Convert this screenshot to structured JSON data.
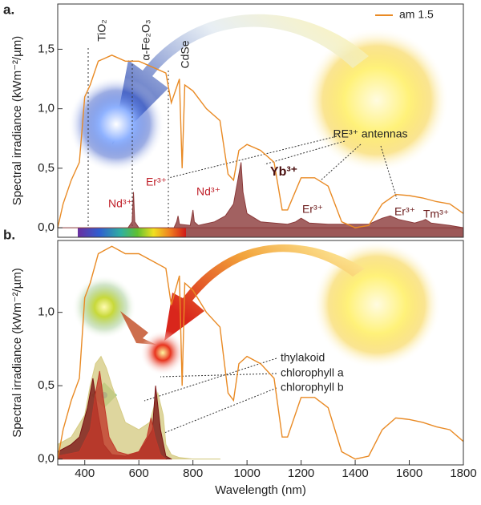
{
  "chart_data": [
    {
      "type": "line",
      "panel_label": "a.",
      "ylabel": "Spectral irradiance (kWm⁻²/µm)",
      "xlim": [
        300,
        1800
      ],
      "ylim": [
        -0.08,
        1.88
      ],
      "yticks": [
        {
          "value": 0,
          "label": "0,0"
        },
        {
          "value": 0.5,
          "label": "0,5"
        },
        {
          "value": 1,
          "label": "1,0"
        },
        {
          "value": 1.5,
          "label": "1,5"
        }
      ],
      "x": [
        300,
        320,
        350,
        380,
        400,
        420,
        450,
        500,
        550,
        600,
        650,
        700,
        720,
        750,
        760,
        770,
        800,
        850,
        900,
        930,
        950,
        970,
        1000,
        1050,
        1100,
        1130,
        1150,
        1200,
        1250,
        1300,
        1350,
        1400,
        1450,
        1500,
        1550,
        1600,
        1650,
        1700,
        1750,
        1800
      ],
      "series": [
        {
          "name": "am 1.5",
          "color": "#e98a24",
          "values": [
            0,
            0.2,
            0.4,
            0.55,
            1.1,
            1.2,
            1.4,
            1.45,
            1.4,
            1.4,
            1.35,
            1.3,
            1.05,
            1.25,
            0.5,
            1.2,
            1.15,
            1.0,
            0.9,
            0.45,
            0.4,
            0.65,
            0.7,
            0.65,
            0.55,
            0.15,
            0.15,
            0.42,
            0.42,
            0.35,
            0.05,
            0,
            0.02,
            0.2,
            0.28,
            0.27,
            0.25,
            0.22,
            0.2,
            0.12
          ]
        },
        {
          "color": "#8b3a3a",
          "x": [
            300,
            560,
            575,
            580,
            585,
            600,
            730,
            740,
            745,
            750,
            790,
            800,
            805,
            820,
            880,
            920,
            950,
            970,
            978,
            985,
            1000,
            1050,
            1150,
            1180,
            1200,
            1230,
            1300,
            1450,
            1500,
            1530,
            1560,
            1620,
            1650,
            1660,
            1680,
            1750,
            1800
          ],
          "values": [
            0,
            0,
            0.05,
            0.3,
            0.05,
            0,
            0,
            0.05,
            0.1,
            0.03,
            0.02,
            0.15,
            0.05,
            0.02,
            0.05,
            0.1,
            0.2,
            0.45,
            0.55,
            0.3,
            0.12,
            0.05,
            0.03,
            0.05,
            0.08,
            0.04,
            0.03,
            0.03,
            0.08,
            0.1,
            0.07,
            0.04,
            0.06,
            0.07,
            0.04,
            0.02,
            0
          ]
        }
      ],
      "legend": "upper right",
      "annotations": [
        "TiO₂",
        "α-Fe₂O₃",
        "CdSe",
        "Nd³⁺",
        "Er³⁺",
        "Nd³⁺",
        "Yb³⁺",
        "Er³⁺",
        "Er³⁺",
        "Tm³⁺",
        "RE³⁺ antennas"
      ]
    },
    {
      "type": "line",
      "panel_label": "b.",
      "ylabel": "Spectral irradiance (kWm⁻²/µm)",
      "xlabel": "Wavelength (nm)",
      "xlim": [
        300,
        1800
      ],
      "ylim": [
        -0.04,
        1.49
      ],
      "xticks": [
        400,
        600,
        800,
        1000,
        1200,
        1400,
        1600,
        1800
      ],
      "yticks": [
        {
          "value": 0,
          "label": "0,0"
        },
        {
          "value": 0.5,
          "label": "0,5"
        },
        {
          "value": 1,
          "label": "1,0"
        }
      ],
      "x": [
        300,
        320,
        350,
        380,
        400,
        420,
        450,
        500,
        550,
        600,
        650,
        700,
        720,
        750,
        760,
        770,
        800,
        850,
        900,
        930,
        950,
        970,
        1000,
        1050,
        1100,
        1130,
        1150,
        1200,
        1250,
        1300,
        1350,
        1400,
        1450,
        1500,
        1550,
        1600,
        1650,
        1700,
        1750,
        1800
      ],
      "series": [
        {
          "color": "#e98a24",
          "values": [
            0,
            0.2,
            0.4,
            0.55,
            1.1,
            1.2,
            1.4,
            1.45,
            1.4,
            1.4,
            1.35,
            1.3,
            1.05,
            1.25,
            0.5,
            1.2,
            1.15,
            1.0,
            0.9,
            0.45,
            0.4,
            0.65,
            0.7,
            0.65,
            0.55,
            0.15,
            0.15,
            0.42,
            0.42,
            0.35,
            0.05,
            0,
            0.02,
            0.2,
            0.28,
            0.27,
            0.25,
            0.22,
            0.2,
            0.12
          ]
        },
        {
          "name": "thylakoid",
          "color": "#d6cc86",
          "x": [
            300,
            350,
            400,
            420,
            440,
            460,
            480,
            500,
            550,
            600,
            640,
            670,
            690,
            700,
            720,
            750,
            800,
            900
          ],
          "values": [
            0.1,
            0.15,
            0.3,
            0.5,
            0.65,
            0.7,
            0.62,
            0.5,
            0.25,
            0.2,
            0.25,
            0.45,
            0.3,
            0.1,
            0.03,
            0.01,
            0,
            0
          ]
        },
        {
          "name": "chlorophyll a",
          "color": "#7a1414",
          "x": [
            300,
            350,
            380,
            410,
            430,
            450,
            470,
            500,
            550,
            600,
            620,
            650,
            662,
            680,
            700,
            720
          ],
          "values": [
            0.05,
            0.1,
            0.15,
            0.35,
            0.55,
            0.3,
            0.1,
            0.03,
            0.02,
            0.05,
            0.1,
            0.2,
            0.5,
            0.2,
            0.02,
            0
          ]
        },
        {
          "name": "chlorophyll b",
          "color": "#c0392b",
          "x": [
            300,
            380,
            420,
            440,
            455,
            470,
            490,
            520,
            560,
            600,
            630,
            645,
            660,
            680,
            700
          ],
          "values": [
            0.02,
            0.05,
            0.2,
            0.45,
            0.6,
            0.4,
            0.15,
            0.05,
            0.03,
            0.05,
            0.15,
            0.28,
            0.15,
            0.03,
            0
          ]
        }
      ]
    }
  ]
}
